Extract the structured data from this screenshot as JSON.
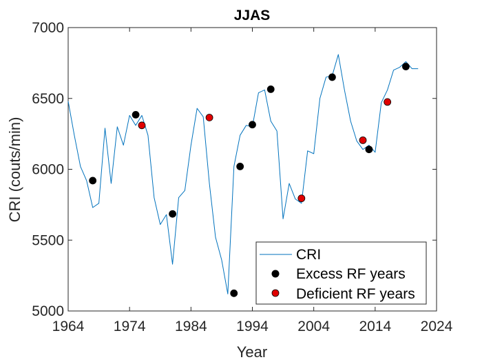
{
  "chart_data": {
    "type": "line",
    "title": "JJAS",
    "xlabel": "Year",
    "ylabel": "CRI (couts/min)",
    "xlim": [
      1964,
      2024
    ],
    "ylim": [
      5000,
      7000
    ],
    "xticks": [
      1964,
      1974,
      1984,
      1994,
      2004,
      2014,
      2024
    ],
    "yticks": [
      5000,
      5500,
      6000,
      6500,
      7000
    ],
    "grid": false,
    "legend_position": "bottom-right",
    "colors": {
      "line": "#0072BD",
      "excess": "#000000",
      "deficient": "#E00000"
    },
    "series": [
      {
        "name": "CRI",
        "kind": "line",
        "x": [
          1964,
          1965,
          1966,
          1967,
          1968,
          1969,
          1970,
          1971,
          1972,
          1973,
          1974,
          1975,
          1976,
          1977,
          1978,
          1979,
          1980,
          1981,
          1982,
          1983,
          1984,
          1985,
          1986,
          1987,
          1988,
          1989,
          1990,
          1991,
          1992,
          1993,
          1994,
          1995,
          1996,
          1997,
          1998,
          1999,
          2000,
          2001,
          2002,
          2003,
          2004,
          2005,
          2006,
          2007,
          2008,
          2009,
          2010,
          2011,
          2012,
          2013,
          2014,
          2015,
          2016,
          2017,
          2018,
          2019,
          2020,
          2021
        ],
        "y": [
          6480,
          6240,
          6020,
          5920,
          5730,
          5760,
          6290,
          5900,
          6300,
          6170,
          6380,
          6310,
          6380,
          6240,
          5800,
          5610,
          5680,
          5330,
          5800,
          5850,
          6170,
          6430,
          6370,
          5900,
          5520,
          5360,
          5120,
          6020,
          6240,
          6310,
          6300,
          6540,
          6560,
          6340,
          6270,
          5650,
          5900,
          5790,
          5760,
          6130,
          6110,
          6500,
          6650,
          6660,
          6810,
          6560,
          6340,
          6200,
          6140,
          6170,
          6120,
          6470,
          6560,
          6700,
          6720,
          6760,
          6710,
          6710
        ]
      },
      {
        "name": "Excess RF years",
        "kind": "markers",
        "x": [
          1968,
          1975,
          1981,
          1991,
          1992,
          1994,
          1997,
          2007,
          2013,
          2019
        ],
        "y": [
          5920,
          6385,
          5685,
          5125,
          6020,
          6315,
          6565,
          6650,
          6140,
          6725
        ]
      },
      {
        "name": "Deficient RF years",
        "kind": "markers",
        "x": [
          1976,
          1987,
          2002,
          2012,
          2016
        ],
        "y": [
          6310,
          6365,
          5795,
          6205,
          6475
        ]
      }
    ]
  }
}
